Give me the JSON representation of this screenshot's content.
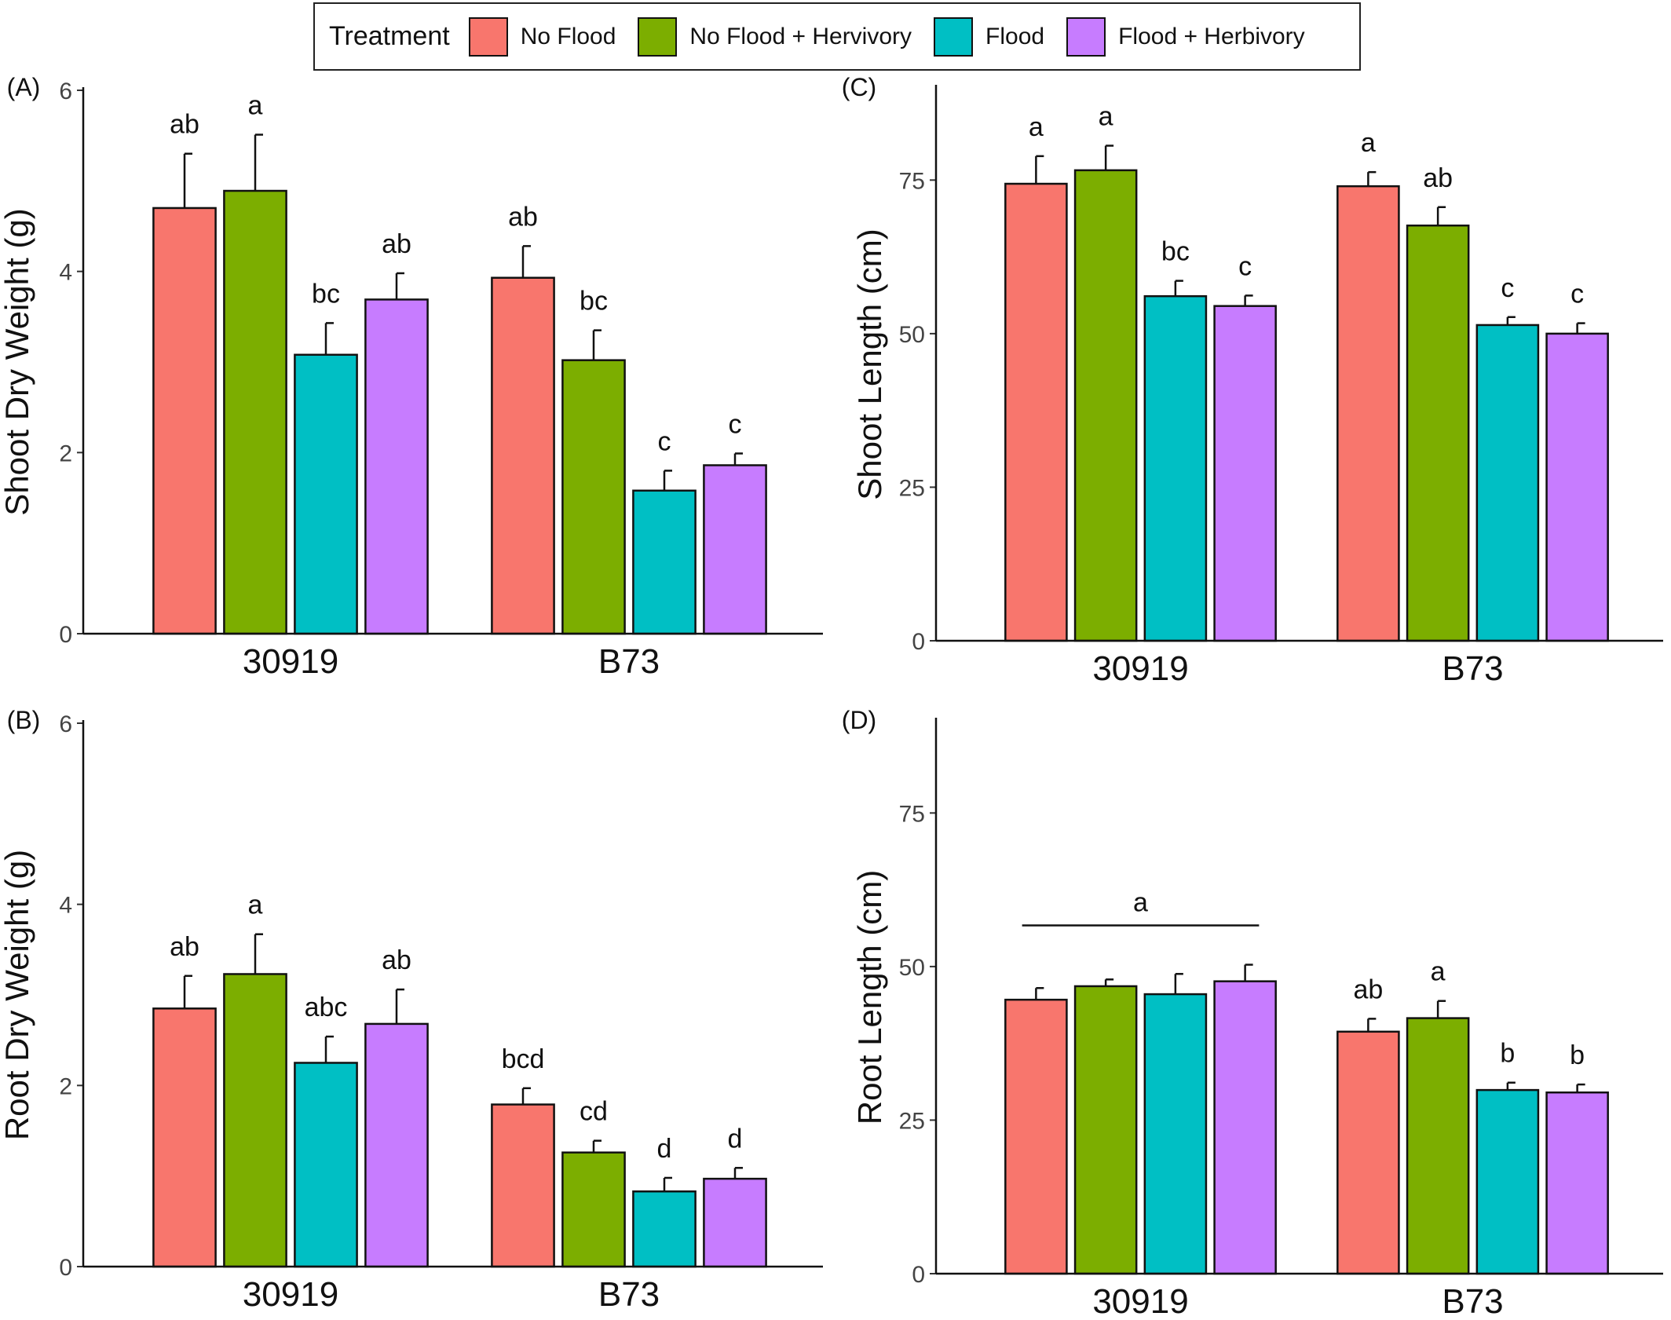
{
  "legend": {
    "title": "Treatment",
    "items": [
      {
        "label": "No Flood",
        "color": "#F8766D"
      },
      {
        "label": "No Flood + Hervivory",
        "color": "#7CAE00"
      },
      {
        "label": "Flood",
        "color": "#00BFC4"
      },
      {
        "label": "Flood + Herbivory",
        "color": "#C77CFF"
      }
    ]
  },
  "chart_data": [
    {
      "type": "bar",
      "panel": "(A)",
      "ylabel": "Shoot Dry Weight (g)",
      "ylim": [
        0,
        6
      ],
      "yticks": [
        0,
        2,
        4,
        6
      ],
      "categories": [
        "30919",
        "B73"
      ],
      "series": [
        {
          "name": "No Flood",
          "values": [
            4.7,
            3.93
          ],
          "errors": [
            0.6,
            0.35
          ],
          "letters": [
            "ab",
            "ab"
          ]
        },
        {
          "name": "No Flood + Hervivory",
          "values": [
            4.89,
            3.02
          ],
          "errors": [
            0.62,
            0.33
          ],
          "letters": [
            "a",
            "bc"
          ]
        },
        {
          "name": "Flood",
          "values": [
            3.08,
            1.58
          ],
          "errors": [
            0.35,
            0.22
          ],
          "letters": [
            "bc",
            "c"
          ]
        },
        {
          "name": "Flood + Herbivory",
          "values": [
            3.69,
            1.86
          ],
          "errors": [
            0.29,
            0.13
          ],
          "letters": [
            "ab",
            "c"
          ]
        }
      ]
    },
    {
      "type": "bar",
      "panel": "(B)",
      "ylabel": "Root Dry Weight (g)",
      "ylim": [
        0,
        6
      ],
      "yticks": [
        0,
        2,
        4,
        6
      ],
      "categories": [
        "30919",
        "B73"
      ],
      "series": [
        {
          "name": "No Flood",
          "values": [
            2.85,
            1.79
          ],
          "errors": [
            0.36,
            0.18
          ],
          "letters": [
            "ab",
            "bcd"
          ]
        },
        {
          "name": "No Flood + Hervivory",
          "values": [
            3.23,
            1.26
          ],
          "errors": [
            0.44,
            0.13
          ],
          "letters": [
            "a",
            "cd"
          ]
        },
        {
          "name": "Flood",
          "values": [
            2.25,
            0.83
          ],
          "errors": [
            0.29,
            0.15
          ],
          "letters": [
            "abc",
            "d"
          ]
        },
        {
          "name": "Flood + Herbivory",
          "values": [
            2.68,
            0.97
          ],
          "errors": [
            0.38,
            0.12
          ],
          "letters": [
            "ab",
            "d"
          ]
        }
      ]
    },
    {
      "type": "bar",
      "panel": "(C)",
      "ylabel": "Shoot Length (cm)",
      "ylim": [
        0,
        90
      ],
      "yticks": [
        0,
        25,
        50,
        75
      ],
      "categories": [
        "30919",
        "B73"
      ],
      "series": [
        {
          "name": "No Flood",
          "values": [
            74.4,
            74.0
          ],
          "errors": [
            4.5,
            2.3
          ],
          "letters": [
            "a",
            "a"
          ]
        },
        {
          "name": "No Flood + Hervivory",
          "values": [
            76.6,
            67.6
          ],
          "errors": [
            4.0,
            3.0
          ],
          "letters": [
            "a",
            "ab"
          ]
        },
        {
          "name": "Flood",
          "values": [
            56.1,
            51.4
          ],
          "errors": [
            2.5,
            1.3
          ],
          "letters": [
            "bc",
            "c"
          ]
        },
        {
          "name": "Flood + Herbivory",
          "values": [
            54.5,
            50.0
          ],
          "errors": [
            1.7,
            1.7
          ],
          "letters": [
            "c",
            "c"
          ]
        }
      ]
    },
    {
      "type": "bar",
      "panel": "(D)",
      "ylabel": "Root Length (cm)",
      "ylim": [
        0,
        90
      ],
      "yticks": [
        0,
        25,
        50,
        75
      ],
      "categories": [
        "30919",
        "B73"
      ],
      "series": [
        {
          "name": "No Flood",
          "values": [
            44.6,
            39.4
          ],
          "errors": [
            1.9,
            2.1
          ],
          "letters": [
            "",
            "ab"
          ]
        },
        {
          "name": "No Flood + Hervivory",
          "values": [
            46.8,
            41.6
          ],
          "errors": [
            1.1,
            2.8
          ],
          "letters": [
            "",
            "a"
          ]
        },
        {
          "name": "Flood",
          "values": [
            45.5,
            29.9
          ],
          "errors": [
            3.3,
            1.2
          ],
          "letters": [
            "",
            "b"
          ]
        },
        {
          "name": "Flood + Herbivory",
          "values": [
            47.6,
            29.5
          ],
          "errors": [
            2.7,
            1.3
          ],
          "letters": [
            "",
            "b"
          ]
        }
      ],
      "group_annotation": {
        "category": "30919",
        "letter": "a"
      }
    }
  ]
}
